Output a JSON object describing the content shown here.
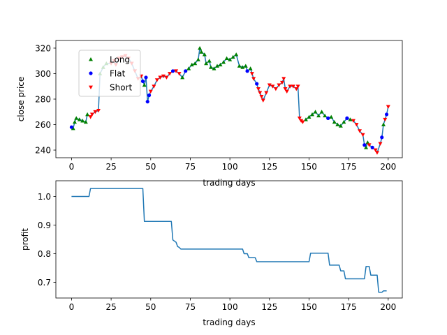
{
  "chart_data": [
    {
      "type": "scatter",
      "xlabel": "trading days",
      "ylabel": "close price",
      "xlim": [
        -9.9,
        208.9
      ],
      "ylim": [
        234,
        326
      ],
      "xticks": [
        0,
        25,
        50,
        75,
        100,
        125,
        150,
        175,
        200
      ],
      "yticks": [
        240,
        260,
        280,
        300,
        320
      ],
      "line_color": "#1f77b4",
      "legend": {
        "placement": "upper-left",
        "entries": [
          {
            "label": "Long",
            "marker": "triangle-up",
            "color": "#008000"
          },
          {
            "label": "Flat",
            "marker": "circle",
            "color": "#0000ff"
          },
          {
            "label": "Short",
            "marker": "triangle-down",
            "color": "#ff0000"
          }
        ]
      },
      "price": [
        [
          0,
          258
        ],
        [
          1,
          257
        ],
        [
          2,
          262
        ],
        [
          3,
          265
        ],
        [
          5,
          264
        ],
        [
          7,
          263
        ],
        [
          9,
          262
        ],
        [
          10,
          268
        ],
        [
          12,
          266
        ],
        [
          13,
          268
        ],
        [
          15,
          270
        ],
        [
          17,
          271
        ],
        [
          18,
          300
        ],
        [
          20,
          305
        ],
        [
          22,
          308
        ],
        [
          25,
          308
        ],
        [
          27,
          310
        ],
        [
          28,
          307
        ],
        [
          30,
          312
        ],
        [
          32,
          313
        ],
        [
          34,
          314
        ],
        [
          36,
          312
        ],
        [
          38,
          308
        ],
        [
          40,
          302
        ],
        [
          42,
          296
        ],
        [
          44,
          298
        ],
        [
          45,
          294
        ],
        [
          46,
          291
        ],
        [
          47,
          297
        ],
        [
          48,
          278
        ],
        [
          49,
          283
        ],
        [
          50,
          286
        ],
        [
          52,
          290
        ],
        [
          54,
          295
        ],
        [
          56,
          297
        ],
        [
          58,
          298
        ],
        [
          60,
          297
        ],
        [
          62,
          300
        ],
        [
          64,
          302
        ],
        [
          66,
          302
        ],
        [
          68,
          300
        ],
        [
          70,
          297
        ],
        [
          72,
          302
        ],
        [
          74,
          304
        ],
        [
          76,
          307
        ],
        [
          78,
          308
        ],
        [
          80,
          311
        ],
        [
          81,
          320
        ],
        [
          82,
          317
        ],
        [
          84,
          315
        ],
        [
          85,
          308
        ],
        [
          87,
          310
        ],
        [
          88,
          305
        ],
        [
          90,
          304
        ],
        [
          92,
          306
        ],
        [
          94,
          307
        ],
        [
          96,
          309
        ],
        [
          98,
          312
        ],
        [
          100,
          311
        ],
        [
          102,
          313
        ],
        [
          104,
          315
        ],
        [
          106,
          306
        ],
        [
          108,
          305
        ],
        [
          110,
          306
        ],
        [
          111,
          302
        ],
        [
          113,
          304
        ],
        [
          114,
          300
        ],
        [
          115,
          296
        ],
        [
          117,
          292
        ],
        [
          118,
          288
        ],
        [
          119,
          285
        ],
        [
          120,
          282
        ],
        [
          121,
          279
        ],
        [
          123,
          285
        ],
        [
          125,
          291
        ],
        [
          127,
          290
        ],
        [
          129,
          288
        ],
        [
          131,
          291
        ],
        [
          133,
          293
        ],
        [
          134,
          296
        ],
        [
          135,
          288
        ],
        [
          136,
          286
        ],
        [
          138,
          290
        ],
        [
          140,
          290
        ],
        [
          142,
          288
        ],
        [
          143,
          290
        ],
        [
          144,
          265
        ],
        [
          145,
          263
        ],
        [
          146,
          262
        ],
        [
          148,
          264
        ],
        [
          150,
          266
        ],
        [
          152,
          268
        ],
        [
          154,
          270
        ],
        [
          156,
          267
        ],
        [
          158,
          270
        ],
        [
          160,
          267
        ],
        [
          162,
          265
        ],
        [
          164,
          266
        ],
        [
          166,
          262
        ],
        [
          168,
          260
        ],
        [
          170,
          259
        ],
        [
          172,
          262
        ],
        [
          174,
          265
        ],
        [
          176,
          264
        ],
        [
          178,
          263
        ],
        [
          180,
          260
        ],
        [
          182,
          255
        ],
        [
          184,
          252
        ],
        [
          185,
          244
        ],
        [
          186,
          242
        ],
        [
          187,
          246
        ],
        [
          188,
          244
        ],
        [
          190,
          242
        ],
        [
          192,
          240
        ],
        [
          193,
          238
        ],
        [
          195,
          245
        ],
        [
          196,
          250
        ],
        [
          197,
          260
        ],
        [
          198,
          264
        ],
        [
          199,
          268
        ],
        [
          200,
          274
        ]
      ],
      "long": [
        [
          1,
          257
        ],
        [
          2,
          262
        ],
        [
          3,
          265
        ],
        [
          5,
          264
        ],
        [
          7,
          263
        ],
        [
          9,
          262
        ],
        [
          10,
          268
        ],
        [
          18,
          300
        ],
        [
          20,
          305
        ],
        [
          22,
          308
        ],
        [
          46,
          291
        ],
        [
          70,
          297
        ],
        [
          74,
          304
        ],
        [
          76,
          307
        ],
        [
          78,
          308
        ],
        [
          80,
          311
        ],
        [
          81,
          320
        ],
        [
          82,
          317
        ],
        [
          84,
          315
        ],
        [
          85,
          308
        ],
        [
          87,
          310
        ],
        [
          88,
          305
        ],
        [
          90,
          304
        ],
        [
          92,
          306
        ],
        [
          94,
          307
        ],
        [
          96,
          309
        ],
        [
          98,
          312
        ],
        [
          100,
          311
        ],
        [
          102,
          313
        ],
        [
          104,
          315
        ],
        [
          106,
          306
        ],
        [
          108,
          305
        ],
        [
          110,
          306
        ],
        [
          113,
          304
        ],
        [
          148,
          264
        ],
        [
          150,
          266
        ],
        [
          152,
          268
        ],
        [
          154,
          270
        ],
        [
          156,
          267
        ],
        [
          158,
          270
        ],
        [
          160,
          267
        ],
        [
          164,
          266
        ],
        [
          166,
          262
        ],
        [
          168,
          260
        ],
        [
          170,
          259
        ],
        [
          172,
          262
        ],
        [
          176,
          264
        ],
        [
          186,
          242
        ],
        [
          187,
          246
        ],
        [
          197,
          260
        ]
      ],
      "flat": [
        [
          0,
          258
        ],
        [
          45,
          294
        ],
        [
          47,
          297
        ],
        [
          48,
          278
        ],
        [
          49,
          283
        ],
        [
          64,
          302
        ],
        [
          72,
          302
        ],
        [
          111,
          302
        ],
        [
          117,
          292
        ],
        [
          162,
          265
        ],
        [
          174,
          265
        ],
        [
          185,
          244
        ],
        [
          190,
          242
        ],
        [
          196,
          250
        ],
        [
          199,
          268
        ]
      ],
      "short": [
        [
          12,
          266
        ],
        [
          13,
          268
        ],
        [
          15,
          270
        ],
        [
          17,
          271
        ],
        [
          25,
          308
        ],
        [
          27,
          310
        ],
        [
          28,
          307
        ],
        [
          30,
          312
        ],
        [
          32,
          313
        ],
        [
          34,
          314
        ],
        [
          36,
          312
        ],
        [
          38,
          308
        ],
        [
          40,
          302
        ],
        [
          42,
          296
        ],
        [
          44,
          298
        ],
        [
          50,
          286
        ],
        [
          52,
          290
        ],
        [
          54,
          295
        ],
        [
          56,
          297
        ],
        [
          58,
          298
        ],
        [
          60,
          297
        ],
        [
          62,
          300
        ],
        [
          66,
          302
        ],
        [
          68,
          300
        ],
        [
          114,
          300
        ],
        [
          115,
          296
        ],
        [
          118,
          288
        ],
        [
          119,
          285
        ],
        [
          120,
          282
        ],
        [
          121,
          279
        ],
        [
          123,
          285
        ],
        [
          125,
          291
        ],
        [
          127,
          290
        ],
        [
          129,
          288
        ],
        [
          131,
          291
        ],
        [
          133,
          293
        ],
        [
          134,
          296
        ],
        [
          135,
          288
        ],
        [
          136,
          286
        ],
        [
          138,
          290
        ],
        [
          140,
          290
        ],
        [
          142,
          288
        ],
        [
          143,
          290
        ],
        [
          144,
          265
        ],
        [
          145,
          263
        ],
        [
          146,
          262
        ],
        [
          178,
          263
        ],
        [
          180,
          260
        ],
        [
          182,
          255
        ],
        [
          184,
          252
        ],
        [
          188,
          244
        ],
        [
          192,
          240
        ],
        [
          193,
          238
        ],
        [
          195,
          245
        ],
        [
          198,
          264
        ],
        [
          200,
          274
        ]
      ]
    },
    {
      "type": "line",
      "xlabel": "trading days",
      "ylabel": "profit",
      "xlim": [
        -9.9,
        208.9
      ],
      "ylim": [
        0.645,
        1.055
      ],
      "xticks": [
        0,
        25,
        50,
        75,
        100,
        125,
        150,
        175,
        200
      ],
      "yticks": [
        0.7,
        0.8,
        0.9,
        1.0
      ],
      "ytick_labels": [
        "0.7",
        "0.8",
        "0.9",
        "1.0"
      ],
      "line_color": "#1f77b4",
      "series": [
        {
          "points": [
            [
              0,
              1.0
            ],
            [
              11,
              1.0
            ],
            [
              12,
              1.028
            ],
            [
              45,
              1.028
            ],
            [
              46,
              0.913
            ],
            [
              63,
              0.913
            ],
            [
              64,
              0.848
            ],
            [
              66,
              0.84
            ],
            [
              67,
              0.825
            ],
            [
              68,
              0.822
            ],
            [
              69,
              0.816
            ],
            [
              108,
              0.816
            ],
            [
              109,
              0.8
            ],
            [
              111,
              0.8
            ],
            [
              112,
              0.786
            ],
            [
              116,
              0.786
            ],
            [
              117,
              0.772
            ],
            [
              150,
              0.772
            ],
            [
              151,
              0.802
            ],
            [
              162,
              0.802
            ],
            [
              163,
              0.76
            ],
            [
              169,
              0.76
            ],
            [
              170,
              0.74
            ],
            [
              172,
              0.74
            ],
            [
              173,
              0.712
            ],
            [
              185,
              0.712
            ],
            [
              186,
              0.755
            ],
            [
              188,
              0.755
            ],
            [
              189,
              0.725
            ],
            [
              193,
              0.725
            ],
            [
              194,
              0.665
            ],
            [
              196,
              0.665
            ],
            [
              197,
              0.67
            ],
            [
              199,
              0.67
            ]
          ]
        }
      ]
    }
  ]
}
